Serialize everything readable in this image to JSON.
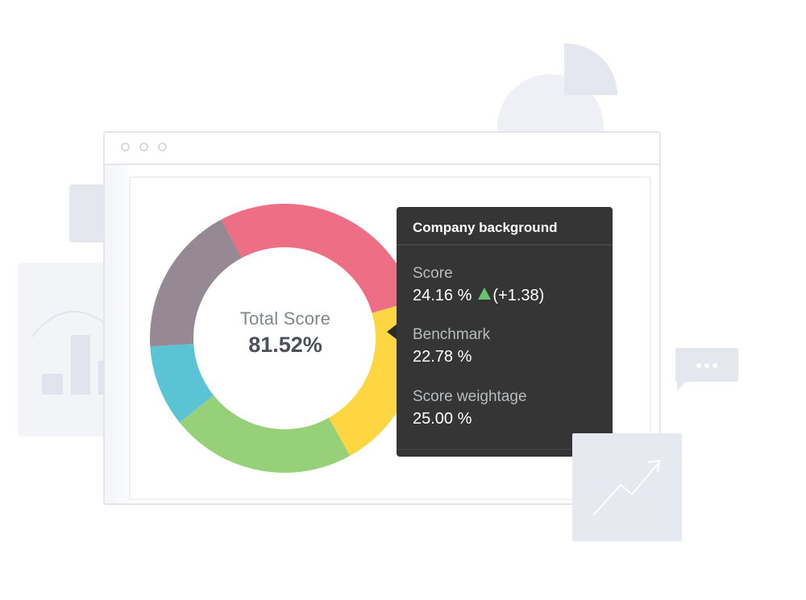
{
  "window": {
    "title_dots": 3
  },
  "donut": {
    "center_label": "Total Score",
    "center_value": "81.52%",
    "segments": [
      {
        "color": "#ee6e86",
        "share": 0.283
      },
      {
        "color": "#fdd642",
        "share": 0.214
      },
      {
        "color": "#96d078",
        "share": 0.223
      },
      {
        "color": "#5ac3d4",
        "share": 0.098
      },
      {
        "color": "#968994",
        "share": 0.182
      }
    ]
  },
  "tooltip": {
    "title": "Company background",
    "score_label": "Score",
    "score_value": "24.16 %",
    "score_change": "(+1.38)",
    "benchmark_label": "Benchmark",
    "benchmark_value": "22.78 %",
    "weightage_label": "Score weightage",
    "weightage_value": "25.00 %",
    "colors": {
      "background": "#353535",
      "trend_up": "#6cc072"
    }
  }
}
